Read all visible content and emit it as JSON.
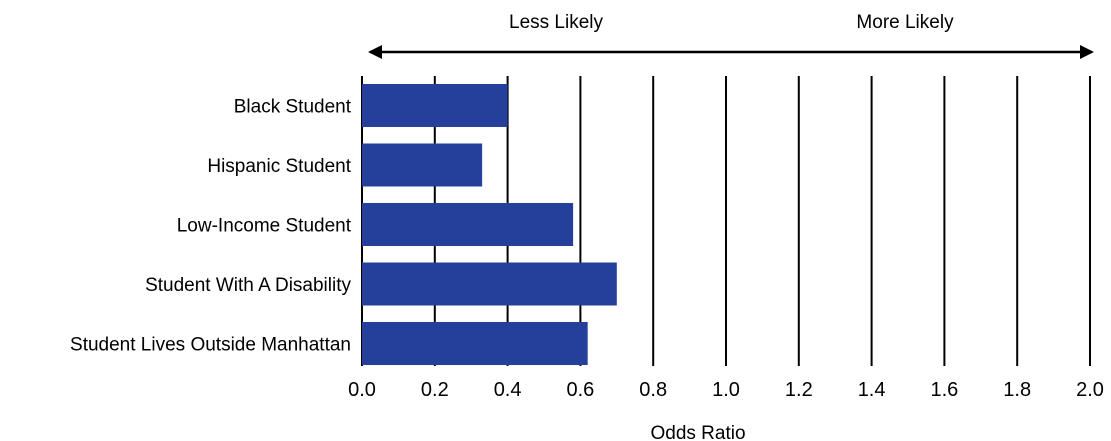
{
  "chart_data": {
    "type": "bar",
    "orientation": "horizontal",
    "categories": [
      "Black Student",
      "Hispanic Student",
      "Low-Income Student",
      "Student With A Disability",
      "Student Lives Outside Manhattan"
    ],
    "values": [
      0.4,
      0.33,
      0.58,
      0.7,
      0.62
    ],
    "xlabel": "Odds Ratio",
    "xlim": [
      0,
      2.0
    ],
    "xticks": [
      "0.0",
      "0.2",
      "0.4",
      "0.6",
      "0.8",
      "1.0",
      "1.2",
      "1.4",
      "1.6",
      "1.8",
      "2.0"
    ],
    "grid": true,
    "bar_color": "#24409a",
    "direction_labels": {
      "left": "Less Likely",
      "right": "More Likely"
    }
  }
}
